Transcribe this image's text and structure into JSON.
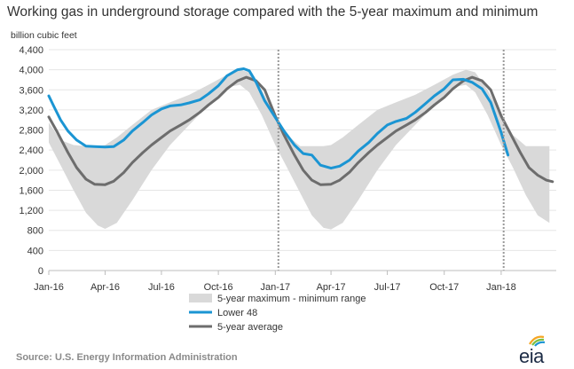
{
  "title": "Working gas in underground  storage compared with the 5-year maximum and minimum",
  "unit": "billion cubic feet",
  "source": "Source:  U.S. Energy Information Administration",
  "logo": "eia",
  "colors": {
    "range": "#d9d9d9",
    "lower48": "#1b95d3",
    "average": "#6d6d6d",
    "grid": "#e6e6e6",
    "axis": "#bdbdbd",
    "divider": "#9a9a9a"
  },
  "chart_data": {
    "type": "area",
    "x_tick_labels": [
      "Jan-16",
      "Apr-16",
      "Jul-16",
      "Oct-16",
      "Jan-17",
      "Apr-17",
      "Jul-17",
      "Oct-17",
      "Jan-18"
    ],
    "y_tick_labels": [
      "0",
      "400",
      "800",
      "1,200",
      "1,600",
      "2,000",
      "2,400",
      "2,800",
      "3,200",
      "3,600",
      "4,000",
      "4,400"
    ],
    "ylim": [
      0,
      4400
    ],
    "xlim": [
      "2016-01-01",
      "2018-03-31"
    ],
    "grid": true,
    "legend_position": "bottom",
    "year_dividers": [
      "2017-01-06",
      "2018-01-05"
    ],
    "legend": [
      {
        "label": "5-year maximum - minimum range",
        "kind": "band"
      },
      {
        "label": "Lower 48",
        "kind": "line"
      },
      {
        "label": "5-year average",
        "kind": "line"
      }
    ],
    "series": [
      {
        "name": "5-year maximum - minimum range",
        "kind": "band",
        "x": [
          "2016-01-01",
          "2016-01-20",
          "2016-02-10",
          "2016-03-01",
          "2016-03-20",
          "2016-04-01",
          "2016-04-20",
          "2016-05-15",
          "2016-06-15",
          "2016-07-15",
          "2016-08-15",
          "2016-09-15",
          "2016-10-15",
          "2016-11-05",
          "2016-11-20",
          "2016-12-10",
          "2017-01-01",
          "2017-01-20",
          "2017-02-10",
          "2017-03-01",
          "2017-03-20",
          "2017-04-01",
          "2017-04-20",
          "2017-05-15",
          "2017-06-15",
          "2017-07-15",
          "2017-08-15",
          "2017-09-15",
          "2017-10-15",
          "2017-11-05",
          "2017-11-20",
          "2017-12-10",
          "2018-01-01",
          "2018-01-20",
          "2018-02-10",
          "2018-03-01",
          "2018-03-20"
        ],
        "upper": [
          2950,
          2600,
          2500,
          2480,
          2480,
          2500,
          2650,
          2900,
          3200,
          3350,
          3500,
          3700,
          3900,
          4000,
          3950,
          3600,
          3100,
          2700,
          2480,
          2480,
          2480,
          2500,
          2650,
          2900,
          3200,
          3350,
          3500,
          3700,
          3900,
          4000,
          3950,
          3600,
          3100,
          2700,
          2480,
          2480,
          2480
        ],
        "lower": [
          2550,
          2100,
          1600,
          1150,
          900,
          830,
          950,
          1400,
          2000,
          2500,
          2900,
          3300,
          3650,
          3700,
          3550,
          3100,
          2500,
          2050,
          1550,
          1100,
          850,
          820,
          950,
          1400,
          2000,
          2500,
          2900,
          3300,
          3650,
          3700,
          3550,
          3100,
          2500,
          2050,
          1500,
          1100,
          950
        ]
      },
      {
        "name": "Lower 48",
        "kind": "line",
        "x": [
          "2016-01-01",
          "2016-01-10",
          "2016-01-20",
          "2016-02-01",
          "2016-02-15",
          "2016-03-01",
          "2016-03-15",
          "2016-04-01",
          "2016-04-15",
          "2016-05-01",
          "2016-05-15",
          "2016-06-01",
          "2016-06-15",
          "2016-07-01",
          "2016-07-15",
          "2016-08-01",
          "2016-08-15",
          "2016-09-01",
          "2016-09-15",
          "2016-10-01",
          "2016-10-15",
          "2016-11-01",
          "2016-11-11",
          "2016-11-20",
          "2016-12-01",
          "2016-12-15",
          "2017-01-01",
          "2017-01-15",
          "2017-02-01",
          "2017-02-15",
          "2017-03-01",
          "2017-03-15",
          "2017-04-01",
          "2017-04-15",
          "2017-05-01",
          "2017-05-15",
          "2017-06-01",
          "2017-06-15",
          "2017-07-01",
          "2017-07-15",
          "2017-08-01",
          "2017-08-15",
          "2017-09-01",
          "2017-09-15",
          "2017-10-01",
          "2017-10-15",
          "2017-11-01",
          "2017-11-15",
          "2017-12-01",
          "2017-12-15",
          "2018-01-01",
          "2018-01-12"
        ],
        "y": [
          3480,
          3250,
          3000,
          2780,
          2600,
          2480,
          2470,
          2460,
          2470,
          2600,
          2780,
          2950,
          3100,
          3220,
          3280,
          3300,
          3340,
          3400,
          3520,
          3680,
          3880,
          4000,
          4020,
          3980,
          3750,
          3380,
          3050,
          2780,
          2500,
          2330,
          2300,
          2100,
          2040,
          2080,
          2200,
          2380,
          2550,
          2730,
          2900,
          2970,
          3030,
          3150,
          3330,
          3480,
          3620,
          3800,
          3810,
          3750,
          3620,
          3350,
          2750,
          2300
        ]
      },
      {
        "name": "5-year average",
        "kind": "line",
        "x": [
          "2016-01-01",
          "2016-01-15",
          "2016-02-01",
          "2016-02-15",
          "2016-03-01",
          "2016-03-15",
          "2016-04-01",
          "2016-04-15",
          "2016-05-01",
          "2016-05-15",
          "2016-06-01",
          "2016-06-15",
          "2016-07-01",
          "2016-07-15",
          "2016-08-01",
          "2016-08-15",
          "2016-09-01",
          "2016-09-15",
          "2016-10-01",
          "2016-10-15",
          "2016-11-01",
          "2016-11-15",
          "2016-12-01",
          "2016-12-15",
          "2017-01-01",
          "2017-01-15",
          "2017-02-01",
          "2017-02-15",
          "2017-03-01",
          "2017-03-15",
          "2017-04-01",
          "2017-04-15",
          "2017-05-01",
          "2017-05-15",
          "2017-06-01",
          "2017-06-15",
          "2017-07-01",
          "2017-07-15",
          "2017-08-01",
          "2017-08-15",
          "2017-09-01",
          "2017-09-15",
          "2017-10-01",
          "2017-10-15",
          "2017-11-01",
          "2017-11-15",
          "2017-12-01",
          "2017-12-15",
          "2018-01-01",
          "2018-01-15",
          "2018-02-01",
          "2018-02-15",
          "2018-03-01",
          "2018-03-15",
          "2018-03-25"
        ],
        "y": [
          3060,
          2750,
          2350,
          2050,
          1820,
          1720,
          1710,
          1780,
          1950,
          2150,
          2350,
          2500,
          2650,
          2780,
          2900,
          3000,
          3150,
          3300,
          3450,
          3620,
          3780,
          3850,
          3780,
          3600,
          3080,
          2700,
          2300,
          2000,
          1800,
          1710,
          1720,
          1800,
          1960,
          2150,
          2350,
          2500,
          2650,
          2780,
          2900,
          3000,
          3150,
          3300,
          3450,
          3620,
          3780,
          3850,
          3780,
          3600,
          3080,
          2750,
          2350,
          2050,
          1900,
          1800,
          1770
        ]
      }
    ]
  }
}
